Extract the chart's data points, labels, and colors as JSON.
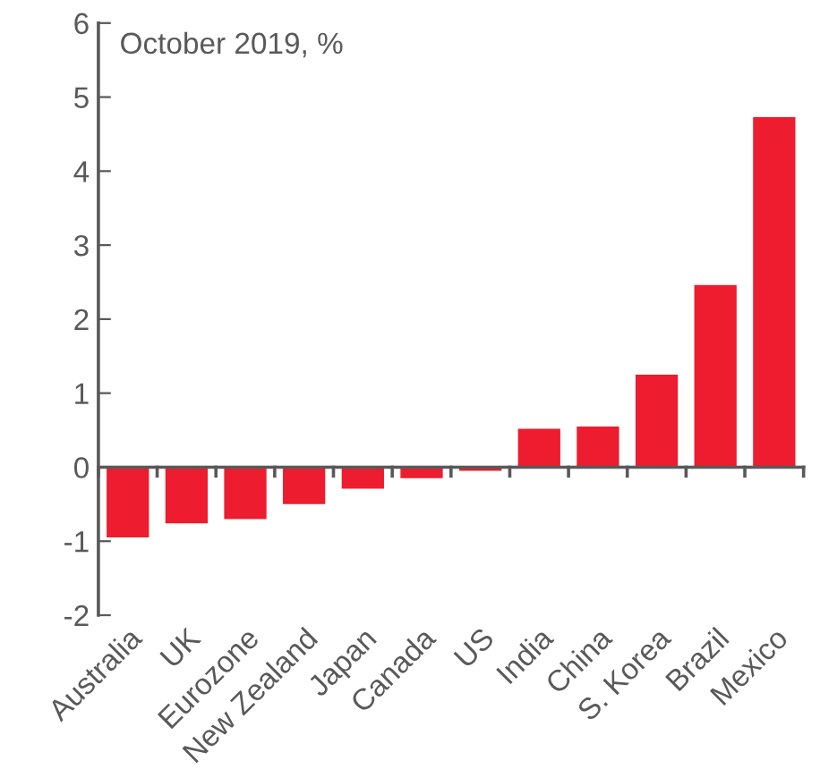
{
  "chart_data": {
    "type": "bar",
    "subtitle": "October 2019, %",
    "categories": [
      "Australia",
      "UK",
      "Eurozone",
      "New Zealand",
      "Japan",
      "Canada",
      "US",
      "India",
      "China",
      "S. Korea",
      "Brazil",
      "Mexico"
    ],
    "values": [
      -0.95,
      -0.76,
      -0.7,
      -0.5,
      -0.29,
      -0.15,
      -0.05,
      0.52,
      0.55,
      1.25,
      2.46,
      4.73
    ],
    "color": "#ed1c2e",
    "ylim": [
      -2,
      6
    ],
    "yticks": [
      -2,
      -1,
      0,
      1,
      2,
      3,
      4,
      5,
      6
    ]
  }
}
